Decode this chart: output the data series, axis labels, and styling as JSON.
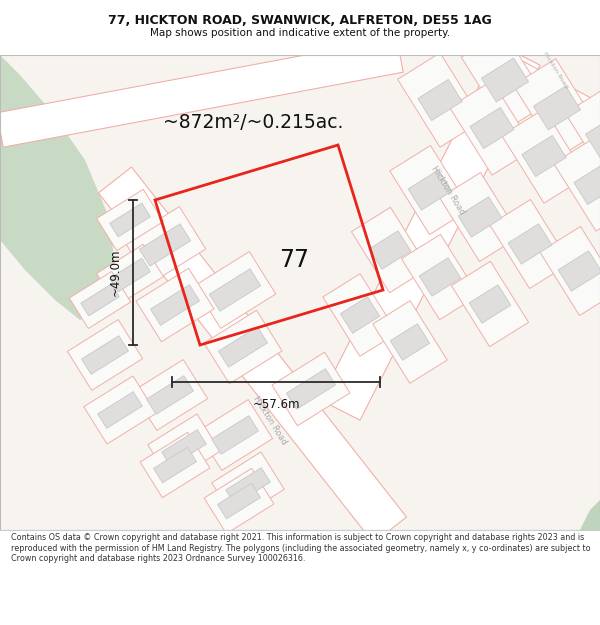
{
  "title_line1": "77, HICKTON ROAD, SWANWICK, ALFRETON, DE55 1AG",
  "title_line2": "Map shows position and indicative extent of the property.",
  "area_text": "~872m²/~0.215ac.",
  "dim_width": "~57.6m",
  "dim_height": "~49.0m",
  "property_label": "77",
  "footer_text": "Contains OS data © Crown copyright and database right 2021. This information is subject to Crown copyright and database rights 2023 and is reproduced with the permission of HM Land Registry. The polygons (including the associated geometry, namely x, y co-ordinates) are subject to Crown copyright and database rights 2023 Ordnance Survey 100026316.",
  "bg_map_color": "#f7f4f0",
  "bg_main_color": "#ffffff",
  "plot_bg_color": "#faf8f6",
  "road_color": "#ffffff",
  "building_color": "#e0dedd",
  "building_outline": "#c8c8c8",
  "plot_outline": "#f0b0a8",
  "highlight_color": "#e8251a",
  "green_area": "#c8d9c4",
  "green_area2": "#bfd4bc",
  "dim_line_color": "#2a2a2a",
  "text_color": "#111111",
  "road_label_color": "#aaaaaa",
  "footer_color": "#333333"
}
